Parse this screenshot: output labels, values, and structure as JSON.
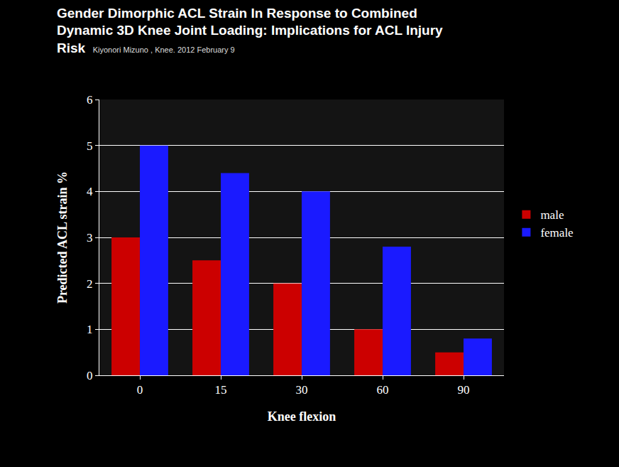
{
  "chart_data": {
    "type": "bar",
    "title": "Gender Dimorphic ACL Strain In Response to Combined Dynamic 3D Knee Joint Loading: Implications for ACL Injury Risk",
    "subtitle": "Kiyonori Mizuno , Knee. 2012 February 9",
    "x_label": "Knee flexion",
    "y_label": "Predicted ACL strain %",
    "categories": [
      "0",
      "15",
      "30",
      "60",
      "90"
    ],
    "series": [
      {
        "name": "male",
        "color": "#cc0000",
        "values": [
          3,
          2.5,
          2,
          1,
          0.5
        ]
      },
      {
        "name": "female",
        "color": "#1a1aff",
        "values": [
          5,
          4.4,
          4,
          2.8,
          0.8
        ]
      }
    ],
    "ylim": [
      0,
      6
    ],
    "yticks": [
      0,
      1,
      2,
      3,
      4,
      5,
      6
    ],
    "grid": true,
    "legend": "right"
  }
}
